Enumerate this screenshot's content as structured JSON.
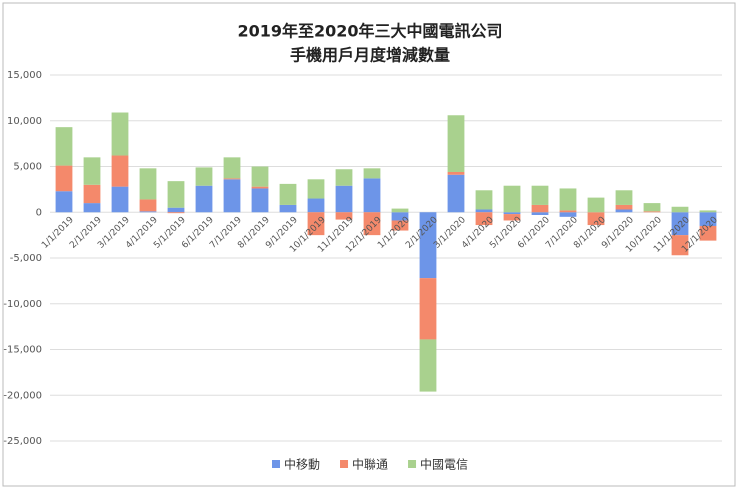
{
  "chart_data": {
    "type": "bar",
    "stacked": true,
    "title": [
      "2019年至2020年三大中國電訊公司",
      "手機用戶月度增減數量"
    ],
    "categories": [
      "1/1/2019",
      "2/1/2019",
      "3/1/2019",
      "4/1/2019",
      "5/1/2019",
      "6/1/2019",
      "7/1/2019",
      "8/1/2019",
      "9/1/2019",
      "10/1/2019",
      "11/1/2019",
      "12/1/2019",
      "1/1/2020",
      "2/1/2020",
      "3/1/2020",
      "4/1/2020",
      "5/1/2020",
      "6/1/2020",
      "7/1/2020",
      "8/1/2020",
      "9/1/2020",
      "10/1/2020",
      "11/1/2020",
      "12/1/2020"
    ],
    "series": [
      {
        "name": "中移動",
        "color": "#6d95e8",
        "values": [
          2300,
          1000,
          2800,
          100,
          500,
          2900,
          3600,
          2600,
          800,
          1500,
          2900,
          3700,
          -900,
          -7200,
          4100,
          300,
          -200,
          -300,
          -500,
          0,
          300,
          0,
          -2500,
          -1500
        ]
      },
      {
        "name": "中聯通",
        "color": "#f4896b",
        "values": [
          2800,
          2000,
          3400,
          1300,
          -100,
          0,
          100,
          200,
          0,
          -2500,
          -800,
          -2500,
          -1100,
          -6700,
          300,
          -1400,
          -700,
          800,
          200,
          -1400,
          500,
          100,
          -2200,
          -1600
        ]
      },
      {
        "name": "中國電信",
        "color": "#a9d18e",
        "values": [
          4200,
          3000,
          4700,
          3400,
          2900,
          2000,
          2300,
          2200,
          2300,
          2100,
          1800,
          1100,
          400,
          -5700,
          6200,
          2100,
          2900,
          2100,
          2400,
          1600,
          1600,
          900,
          600,
          200
        ]
      }
    ],
    "ylim": [
      -25000,
      15000
    ],
    "yticks": [
      {
        "value": -25000,
        "label": "-25,000"
      },
      {
        "value": -20000,
        "label": "-20,000"
      },
      {
        "value": -15000,
        "label": "-15,000"
      },
      {
        "value": -10000,
        "label": "-10,000"
      },
      {
        "value": -5000,
        "label": "-5,000"
      },
      0,
      {
        "value": 5000,
        "label": "5,000"
      },
      {
        "value": 10000,
        "label": "10,000"
      },
      {
        "value": 15000,
        "label": "15,000"
      }
    ],
    "grid": true
  }
}
